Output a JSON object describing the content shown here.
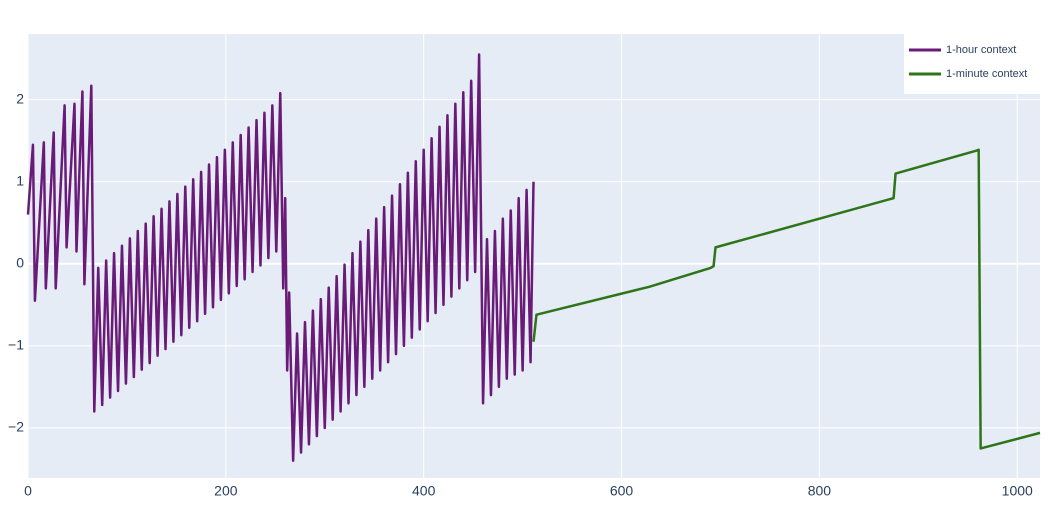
{
  "chart_data": {
    "type": "line",
    "xlim": [
      0,
      1023
    ],
    "ylim": [
      -2.61,
      2.8
    ],
    "xticks": [
      0,
      200,
      400,
      600,
      800,
      1000
    ],
    "yticks": [
      {
        "value": -2,
        "label": "−2"
      },
      {
        "value": -1,
        "label": "−1"
      },
      0,
      1,
      2
    ],
    "grid": true,
    "legend": "top-right",
    "series": [
      {
        "name": "1-hour context",
        "color": "#6a1b78",
        "x": [
          0,
          5,
          7,
          16,
          18,
          26,
          28,
          37,
          39,
          47,
          49,
          55,
          57,
          64,
          67,
          71,
          75,
          79,
          83,
          87,
          91,
          95,
          99,
          103,
          107,
          111,
          115,
          119,
          123,
          127,
          131,
          135,
          139,
          143,
          147,
          151,
          155,
          159,
          163,
          167,
          171,
          175,
          179,
          183,
          187,
          191,
          195,
          199,
          203,
          207,
          211,
          215,
          219,
          223,
          227,
          231,
          235,
          239,
          243,
          247,
          251,
          255,
          258,
          260,
          262,
          264,
          268,
          272,
          276,
          280,
          284,
          288,
          292,
          296,
          300,
          304,
          308,
          312,
          316,
          320,
          324,
          328,
          332,
          336,
          340,
          344,
          348,
          352,
          356,
          360,
          364,
          368,
          372,
          376,
          380,
          384,
          388,
          392,
          396,
          400,
          404,
          408,
          412,
          416,
          420,
          424,
          428,
          432,
          436,
          440,
          444,
          448,
          452,
          456,
          460,
          464,
          468,
          472,
          476,
          480,
          484,
          488,
          492,
          496,
          500,
          504,
          508,
          511
        ],
        "values": [
          0.6,
          1.45,
          -0.45,
          1.48,
          -0.3,
          1.6,
          -0.3,
          1.93,
          0.2,
          1.95,
          0.15,
          2.1,
          -0.25,
          2.17,
          -1.8,
          -0.05,
          -1.72,
          0.04,
          -1.63,
          0.13,
          -1.55,
          0.22,
          -1.46,
          0.31,
          -1.38,
          0.4,
          -1.29,
          0.49,
          -1.21,
          0.58,
          -1.12,
          0.67,
          -1.04,
          0.76,
          -0.95,
          0.85,
          -0.87,
          0.94,
          -0.78,
          1.03,
          -0.7,
          1.12,
          -0.61,
          1.21,
          -0.53,
          1.3,
          -0.44,
          1.39,
          -0.36,
          1.48,
          -0.27,
          1.57,
          -0.19,
          1.66,
          -0.1,
          1.75,
          -0.02,
          1.84,
          0.07,
          1.93,
          0.15,
          2.08,
          -0.3,
          0.8,
          -1.3,
          -0.35,
          -2.4,
          -0.85,
          -2.3,
          -0.71,
          -2.2,
          -0.57,
          -2.1,
          -0.43,
          -2.0,
          -0.29,
          -1.9,
          -0.15,
          -1.8,
          -0.01,
          -1.7,
          0.13,
          -1.6,
          0.27,
          -1.5,
          0.41,
          -1.4,
          0.55,
          -1.3,
          0.69,
          -1.2,
          0.83,
          -1.1,
          0.97,
          -1.0,
          1.11,
          -0.9,
          1.25,
          -0.8,
          1.39,
          -0.7,
          1.53,
          -0.6,
          1.67,
          -0.5,
          1.81,
          -0.4,
          1.95,
          -0.3,
          2.09,
          -0.2,
          2.23,
          -0.1,
          2.55,
          -1.7,
          0.3,
          -1.6,
          0.4,
          -1.5,
          0.55,
          -1.4,
          0.65,
          -1.35,
          0.8,
          -1.3,
          0.9,
          -1.2,
          1.0
        ]
      },
      {
        "name": "1-minute context",
        "color": "#2e7418",
        "x": [
          511,
          514,
          628,
          690,
          693,
          695,
          875,
          877,
          959,
          961,
          963,
          1023
        ],
        "values": [
          -0.95,
          -0.62,
          -0.28,
          -0.05,
          -0.03,
          0.2,
          0.8,
          1.1,
          1.38,
          1.39,
          -2.25,
          -2.06
        ]
      }
    ]
  }
}
